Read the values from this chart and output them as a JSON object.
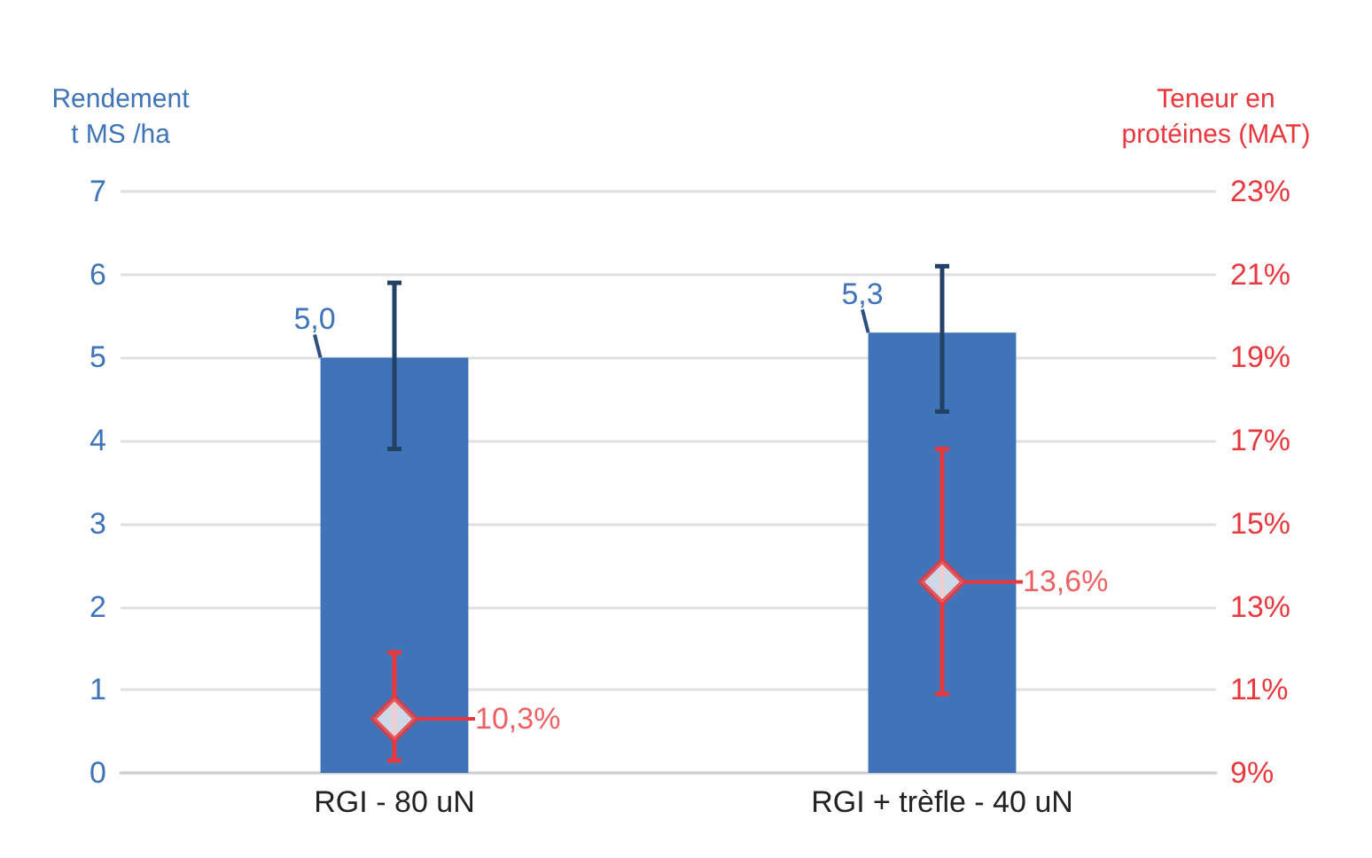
{
  "chart_data": {
    "type": "bar",
    "ylabel": "Rendement\nt MS /ha",
    "y2label": "Teneur en\nprotéines (MAT)",
    "categories": [
      "RGI - 80 uN",
      "RGI + trèfle - 40 uN"
    ],
    "series": [
      {
        "color": "#3f74b8",
        "values": [
          5.0,
          5.3
        ],
        "errors": [
          [
            3.9,
            5.9
          ],
          [
            4.35,
            6.1
          ]
        ],
        "value_labels": [
          "5,0",
          "5,3"
        ]
      },
      {
        "type": "scatter",
        "axis": "y2",
        "marker": "diamond",
        "color": "#e8383d",
        "values": [
          10.3,
          13.6
        ],
        "errors": [
          [
            9.3,
            11.9
          ],
          [
            10.9,
            16.8
          ]
        ],
        "value_labels": [
          "10,3%",
          "13,6%"
        ]
      }
    ],
    "ylim": [
      0,
      7
    ],
    "yticks": [
      0,
      1,
      2,
      3,
      4,
      5,
      6,
      7
    ],
    "y2lim": [
      9,
      23
    ],
    "y2ticks": [
      {
        "value": 9,
        "label": "9%"
      },
      {
        "value": 11,
        "label": "11%"
      },
      {
        "value": 13,
        "label": "13%"
      },
      {
        "value": 15,
        "label": "15%"
      },
      {
        "value": 17,
        "label": "17%"
      },
      {
        "value": 19,
        "label": "19%"
      },
      {
        "value": 21,
        "label": "21%"
      },
      {
        "value": 23,
        "label": "23%"
      }
    ],
    "grid": "y"
  }
}
